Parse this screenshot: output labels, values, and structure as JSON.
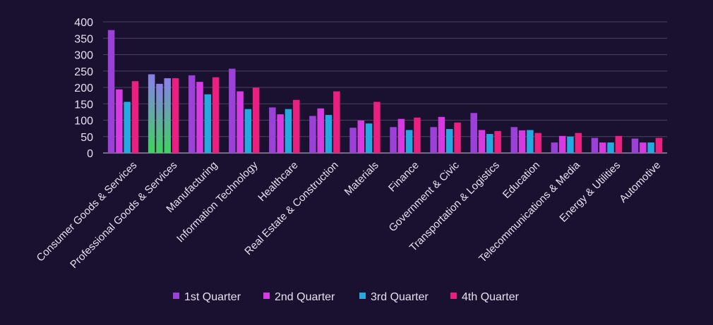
{
  "colors": {
    "background": "#1a1130",
    "gridline": "#4a4060",
    "axis_text": "#e6e1f0",
    "baseline": "#cfc8dc",
    "highlight_gradient": [
      "#8a7fe8",
      "#3ed35f"
    ]
  },
  "chart_data": {
    "type": "bar",
    "title": "",
    "xlabel": "",
    "ylabel": "",
    "ylim": [
      0,
      400
    ],
    "yticks": [
      0,
      50,
      100,
      150,
      200,
      250,
      300,
      350,
      400
    ],
    "grid": true,
    "legend_position": "bottom",
    "categories": [
      "Consumer Goods & Services",
      "Professional Goods & Services",
      "Manufacturing",
      "Information Technology",
      "Healthcare",
      "Real Estate & Construction",
      "Materials",
      "Finance",
      "Government & Civic",
      "Transportation & Logistics",
      "Education",
      "Telecommunications & Media",
      "Energy & Utilities",
      "Automotive"
    ],
    "series": [
      {
        "name": "1st Quarter",
        "color": "#9b40d9",
        "values": [
          375,
          240,
          237,
          257,
          139,
          113,
          77,
          79,
          79,
          122,
          79,
          32,
          46,
          44
        ]
      },
      {
        "name": "2nd Quarter",
        "color": "#d63ae0",
        "values": [
          194,
          211,
          217,
          188,
          118,
          136,
          99,
          104,
          110,
          70,
          69,
          52,
          32,
          32
        ]
      },
      {
        "name": "3rd Quarter",
        "color": "#25a9e0",
        "values": [
          156,
          228,
          179,
          134,
          134,
          116,
          90,
          70,
          73,
          58,
          70,
          50,
          32,
          32
        ]
      },
      {
        "name": "4th Quarter",
        "color": "#ea1f7f",
        "values": [
          219,
          228,
          231,
          199,
          162,
          188,
          156,
          108,
          93,
          67,
          61,
          61,
          52,
          46
        ]
      }
    ],
    "highlighted_category": "Professional Goods & Services"
  }
}
